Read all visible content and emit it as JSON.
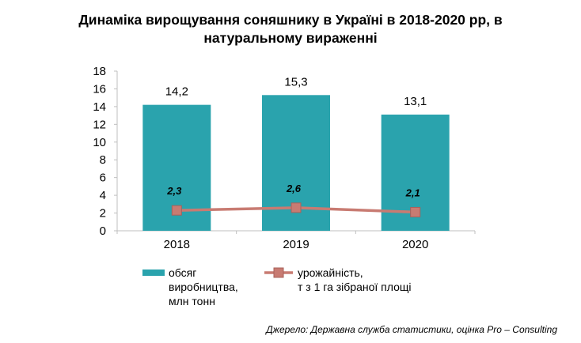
{
  "title": "Динаміка вирощування соняшнику в Україні в 2018-2020 рр, в\nнатуральному вираженні",
  "source": "Джерело: Державна служба статистики, оцінка Pro – Consulting",
  "colors": {
    "bar": "#2aa3ad",
    "line": "#c87b72",
    "grid": "#dcdcdc"
  },
  "chart_data": {
    "type": "bar",
    "title": "Динаміка вирощування соняшнику в Україні в 2018-2020 рр, в натуральному вираженні",
    "categories": [
      "2018",
      "2019",
      "2020"
    ],
    "ylim": [
      0,
      18
    ],
    "yticks": [
      "0",
      "2",
      "4",
      "6",
      "8",
      "10",
      "12",
      "14",
      "16",
      "18"
    ],
    "series": [
      {
        "name": "обсяг виробництва, млн тонн",
        "type": "bar",
        "values": [
          14.2,
          15.3,
          13.1
        ],
        "labels": [
          "14,2",
          "15,3",
          "13,1"
        ]
      },
      {
        "name": "урожайність, т з 1 га зібраної площі",
        "type": "line",
        "values": [
          2.3,
          2.6,
          2.1
        ],
        "labels": [
          "2,3",
          "2,6",
          "2,1"
        ]
      }
    ],
    "grid": false,
    "legend": "bottom"
  },
  "legend": {
    "bar_label": "обсяг\nвиробництва,\nмлн тонн",
    "line_label": "урожайність,\nт з 1 га зібраної площі"
  }
}
